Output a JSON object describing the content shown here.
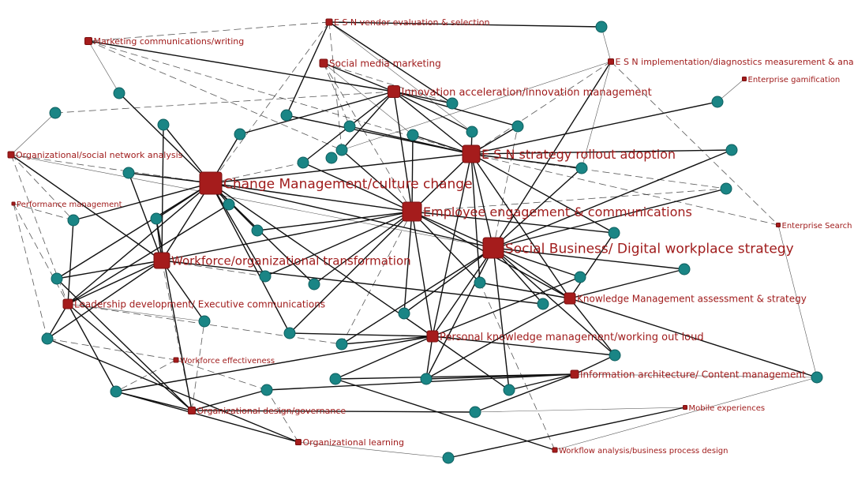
{
  "colors": {
    "topic": "#a51c1c",
    "topic_stroke": "#7a1010",
    "person": "#1a8585",
    "person_stroke": "#0f5f5f",
    "label": "#a01c1c",
    "edge": "#111111"
  },
  "topics": [
    {
      "id": "s1",
      "label": "E S N vendor evaluation & selection"
    },
    {
      "id": "s2",
      "label": "Marketing communications/writing"
    },
    {
      "id": "s3",
      "label": "Social media marketing"
    },
    {
      "id": "s4",
      "label": "E S N implementation/diagnostics measurement & analytics"
    },
    {
      "id": "s5",
      "label": "Enterprise gamification"
    },
    {
      "id": "s6",
      "label": "Innovation acceleration/innovation management"
    },
    {
      "id": "s7",
      "label": "Organizational/social network analysis"
    },
    {
      "id": "s8",
      "label": "E S N strategy rollout adoption"
    },
    {
      "id": "s9",
      "label": "Change  Management/culture change"
    },
    {
      "id": "s10",
      "label": "Performance management"
    },
    {
      "id": "s11",
      "label": "Employee engagement & communications"
    },
    {
      "id": "s12",
      "label": "Enterprise  Search"
    },
    {
      "id": "s13",
      "label": "Social  Business/ Digital workplace strategy"
    },
    {
      "id": "s14",
      "label": "Workforce/organizational transformation"
    },
    {
      "id": "s15",
      "label": "Leadership development/  Executive communications"
    },
    {
      "id": "s16",
      "label": "Knowledge  Management assessment & strategy"
    },
    {
      "id": "s17",
      "label": "Personal knowledge management/working out loud"
    },
    {
      "id": "s18",
      "label": "Workforce effectiveness"
    },
    {
      "id": "s19",
      "label": "Information architecture/ Content management"
    },
    {
      "id": "s20",
      "label": "Organizational design/governance"
    },
    {
      "id": "s21",
      "label": "Mobile experiences"
    },
    {
      "id": "s22",
      "label": "Organizational learning"
    },
    {
      "id": "s23",
      "label": "Workflow analysis/business process design"
    }
  ],
  "edges": [
    [
      "s1",
      "c1",
      "s"
    ],
    [
      "s1",
      "c5",
      "s"
    ],
    [
      "s1",
      "c12",
      "d"
    ],
    [
      "s1",
      "s9",
      "d"
    ],
    [
      "s1",
      "s2",
      "d"
    ],
    [
      "s1",
      "c8",
      "t"
    ],
    [
      "s1",
      "c7",
      "s"
    ],
    [
      "s2",
      "c2",
      "t"
    ],
    [
      "s2",
      "s6",
      "s"
    ],
    [
      "s2",
      "s8",
      "d"
    ],
    [
      "s2",
      "c12",
      "d"
    ],
    [
      "s3",
      "s6",
      "s"
    ],
    [
      "s3",
      "c6",
      "d"
    ],
    [
      "s3",
      "s11",
      "d"
    ],
    [
      "s3",
      "c13",
      "t"
    ],
    [
      "s3",
      "c7",
      "d"
    ],
    [
      "s4",
      "c1",
      "t"
    ],
    [
      "s4",
      "s8",
      "d"
    ],
    [
      "s4",
      "s13",
      "s"
    ],
    [
      "s4",
      "c17",
      "t"
    ],
    [
      "s4",
      "c12",
      "t"
    ],
    [
      "s4",
      "s12",
      "d"
    ],
    [
      "s5",
      "c10",
      "t"
    ],
    [
      "s6",
      "c3",
      "d"
    ],
    [
      "s6",
      "c14",
      "s"
    ],
    [
      "s6",
      "c12",
      "s"
    ],
    [
      "s6",
      "c11",
      "s"
    ],
    [
      "s6",
      "c9",
      "s"
    ],
    [
      "s6",
      "s8",
      "s"
    ],
    [
      "s6",
      "s11",
      "s"
    ],
    [
      "s6",
      "c7",
      "s"
    ],
    [
      "s6",
      "c8",
      "s"
    ],
    [
      "s7",
      "c3",
      "t"
    ],
    [
      "s7",
      "s14",
      "s"
    ],
    [
      "s7",
      "s11",
      "d"
    ],
    [
      "s7",
      "c22",
      "d"
    ],
    [
      "s7",
      "s15",
      "d"
    ],
    [
      "s7",
      "s13",
      "t"
    ],
    [
      "s8",
      "c18",
      "s"
    ],
    [
      "s8",
      "c17",
      "s"
    ],
    [
      "s8",
      "c19",
      "d"
    ],
    [
      "s8",
      "c9",
      "s"
    ],
    [
      "s8",
      "c8",
      "s"
    ],
    [
      "s8",
      "c13",
      "s"
    ],
    [
      "s8",
      "s9",
      "s"
    ],
    [
      "s8",
      "s11",
      "s"
    ],
    [
      "s8",
      "s13",
      "s"
    ],
    [
      "s8",
      "c10",
      "s"
    ],
    [
      "s8",
      "c24",
      "s"
    ],
    [
      "s8",
      "c28",
      "s"
    ],
    [
      "s8",
      "c6",
      "s"
    ],
    [
      "s8",
      "c5",
      "s"
    ],
    [
      "s8",
      "s16",
      "s"
    ],
    [
      "s8",
      "s17",
      "s"
    ],
    [
      "s9",
      "c2",
      "s"
    ],
    [
      "s9",
      "c4",
      "s"
    ],
    [
      "s9",
      "c11",
      "s"
    ],
    [
      "s9",
      "c16",
      "s"
    ],
    [
      "s9",
      "c20",
      "s"
    ],
    [
      "s9",
      "c21",
      "s"
    ],
    [
      "s9",
      "c22",
      "s"
    ],
    [
      "s9",
      "c23",
      "s"
    ],
    [
      "s9",
      "s14",
      "s"
    ],
    [
      "s9",
      "s11",
      "s"
    ],
    [
      "s9",
      "s13",
      "s"
    ],
    [
      "s9",
      "c25",
      "s"
    ],
    [
      "s9",
      "c27",
      "s"
    ],
    [
      "s9",
      "s17",
      "s"
    ],
    [
      "s9",
      "c26",
      "s"
    ],
    [
      "s9",
      "s15",
      "s"
    ],
    [
      "s9",
      "c33",
      "s"
    ],
    [
      "s9",
      "c14",
      "d"
    ],
    [
      "s10",
      "c22",
      "d"
    ],
    [
      "s10",
      "s15",
      "d"
    ],
    [
      "s10",
      "c35",
      "d"
    ],
    [
      "s11",
      "c12",
      "s"
    ],
    [
      "s11",
      "c13",
      "s"
    ],
    [
      "s11",
      "c14",
      "s"
    ],
    [
      "s11",
      "c23",
      "s"
    ],
    [
      "s11",
      "c26",
      "s"
    ],
    [
      "s11",
      "c27",
      "s"
    ],
    [
      "s11",
      "c28",
      "s"
    ],
    [
      "s11",
      "c24",
      "s"
    ],
    [
      "s11",
      "s13",
      "s"
    ],
    [
      "s11",
      "s17",
      "s"
    ],
    [
      "s11",
      "c34",
      "s"
    ],
    [
      "s11",
      "s14",
      "s"
    ],
    [
      "s11",
      "c33",
      "s"
    ],
    [
      "s11",
      "c36",
      "d"
    ],
    [
      "s11",
      "s16",
      "s"
    ],
    [
      "s11",
      "c19",
      "d"
    ],
    [
      "s12",
      "c44",
      "t"
    ],
    [
      "s12",
      "s8",
      "d"
    ],
    [
      "s13",
      "c17",
      "s"
    ],
    [
      "s13",
      "c19",
      "s"
    ],
    [
      "s13",
      "c29",
      "s"
    ],
    [
      "s13",
      "c30",
      "s"
    ],
    [
      "s13",
      "c31",
      "s"
    ],
    [
      "s13",
      "s16",
      "s"
    ],
    [
      "s13",
      "s17",
      "s"
    ],
    [
      "s13",
      "c41",
      "s"
    ],
    [
      "s13",
      "c42",
      "s"
    ],
    [
      "s13",
      "c34",
      "s"
    ],
    [
      "s13",
      "c36",
      "s"
    ],
    [
      "s13",
      "c37",
      "s"
    ],
    [
      "s13",
      "c9",
      "d"
    ],
    [
      "s13",
      "c18",
      "s"
    ],
    [
      "s14",
      "c4",
      "s"
    ],
    [
      "s14",
      "c16",
      "s"
    ],
    [
      "s14",
      "c21",
      "s"
    ],
    [
      "s14",
      "c25",
      "s"
    ],
    [
      "s14",
      "c32",
      "s"
    ],
    [
      "s14",
      "c26",
      "d"
    ],
    [
      "s14",
      "s15",
      "s"
    ],
    [
      "s14",
      "c35",
      "s"
    ],
    [
      "s14",
      "s20",
      "d"
    ],
    [
      "s14",
      "c31",
      "s"
    ],
    [
      "s15",
      "c35",
      "s"
    ],
    [
      "s15",
      "c38",
      "s"
    ],
    [
      "s15",
      "c22",
      "s"
    ],
    [
      "s15",
      "c20",
      "s"
    ],
    [
      "s15",
      "s20",
      "s"
    ],
    [
      "s15",
      "c36",
      "d"
    ],
    [
      "s15",
      "c32",
      "t"
    ],
    [
      "s16",
      "c30",
      "s"
    ],
    [
      "s16",
      "c24",
      "s"
    ],
    [
      "s16",
      "c37",
      "s"
    ],
    [
      "s16",
      "c44",
      "s"
    ],
    [
      "s16",
      "c41",
      "s"
    ],
    [
      "s16",
      "c28",
      "s"
    ],
    [
      "s17",
      "c33",
      "s"
    ],
    [
      "s17",
      "c36",
      "s"
    ],
    [
      "s17",
      "c40",
      "s"
    ],
    [
      "s17",
      "c41",
      "s"
    ],
    [
      "s17",
      "c42",
      "s"
    ],
    [
      "s17",
      "c38",
      "s"
    ],
    [
      "s17",
      "c37",
      "s"
    ],
    [
      "s17",
      "c29",
      "s"
    ],
    [
      "s18",
      "c35",
      "d"
    ],
    [
      "s18",
      "c38",
      "d"
    ],
    [
      "s18",
      "c39",
      "d"
    ],
    [
      "s19",
      "c39",
      "s"
    ],
    [
      "s19",
      "c40",
      "s"
    ],
    [
      "s19",
      "c41",
      "s"
    ],
    [
      "s19",
      "c42",
      "s"
    ],
    [
      "s19",
      "c43",
      "s"
    ],
    [
      "s19",
      "c44",
      "t"
    ],
    [
      "s19",
      "c37",
      "s"
    ],
    [
      "s20",
      "c25",
      "s"
    ],
    [
      "s20",
      "c38",
      "s"
    ],
    [
      "s20",
      "c39",
      "s"
    ],
    [
      "s20",
      "c43",
      "s"
    ],
    [
      "s20",
      "c32",
      "d"
    ],
    [
      "s20",
      "c21",
      "s"
    ],
    [
      "s21",
      "c45",
      "s"
    ],
    [
      "s21",
      "c43",
      "t"
    ],
    [
      "s22",
      "c38",
      "s"
    ],
    [
      "s22",
      "c39",
      "d"
    ],
    [
      "s22",
      "c45",
      "t"
    ],
    [
      "s22",
      "c35",
      "s"
    ],
    [
      "s23",
      "c40",
      "s"
    ],
    [
      "s23",
      "c44",
      "t"
    ],
    [
      "s23",
      "c28",
      "d"
    ]
  ]
}
